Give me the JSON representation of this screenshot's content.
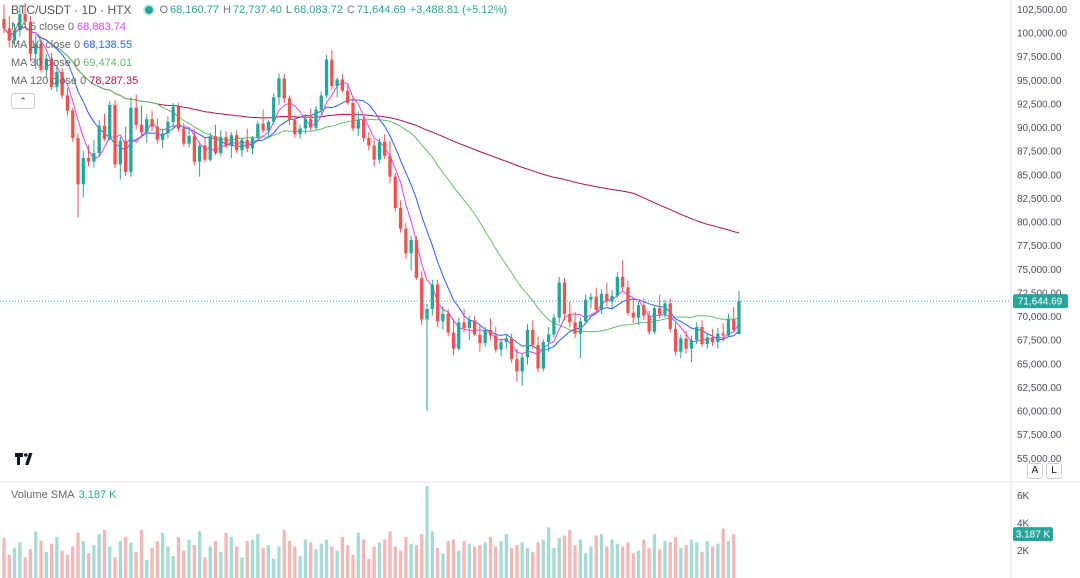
{
  "header": {
    "symbol": "BTC/USDT · 1D · HTX",
    "open_label": "O",
    "open": "68,160.77",
    "high_label": "H",
    "high": "72,737.40",
    "low_label": "L",
    "low": "68,083.72",
    "close_label": "C",
    "close": "71,644.69",
    "change": "+3,488.81 (+5.12%)"
  },
  "ma_legend": [
    {
      "name": "MA 5 close 0",
      "value": "68,883.74",
      "color": "#e040fb"
    },
    {
      "name": "MA 10 close 0",
      "value": "68,138.55",
      "color": "#2962ff"
    },
    {
      "name": "MA 30 close 0",
      "value": "69,474.01",
      "color": "#66bb6a"
    },
    {
      "name": "MA 120 close 0",
      "value": "78,287.35",
      "color": "#ad1457"
    }
  ],
  "collapse_icon": "chevron-up-icon",
  "volume": {
    "label": "Volume SMA",
    "value": "3.187 K",
    "last_tag": "3.187 K"
  },
  "price_tag": "71,644.69",
  "scale_buttons": {
    "auto": "A",
    "log": "L"
  },
  "colors": {
    "up": "#26a69a",
    "down": "#ef5350",
    "up_vol": "#a5dbd2",
    "down_vol": "#f5b7b5"
  },
  "chart_data": {
    "type": "candlestick",
    "price_axis": {
      "ylim": [
        52500,
        103500
      ],
      "ticks": [
        55000,
        57500,
        60000,
        62500,
        65000,
        67500,
        70000,
        72500,
        75000,
        77500,
        80000,
        82500,
        85000,
        87500,
        90000,
        92500,
        95000,
        97500,
        100000,
        102500
      ]
    },
    "volume_axis": {
      "ylim": [
        0,
        7000
      ],
      "ticks": [
        {
          "v": 2000,
          "label": "2K"
        },
        {
          "v": 4000,
          "label": "4K"
        },
        {
          "v": 6000,
          "label": "6K"
        }
      ]
    },
    "last_price": 71644.69,
    "candles": [
      [
        101500,
        103000,
        100000,
        100500
      ],
      [
        100500,
        101800,
        98500,
        99200
      ],
      [
        99200,
        101000,
        98700,
        100300
      ],
      [
        100300,
        102800,
        99600,
        102000
      ],
      [
        102000,
        103200,
        100800,
        101200
      ],
      [
        101200,
        101800,
        97000,
        97800
      ],
      [
        97800,
        99800,
        96200,
        98900
      ],
      [
        98900,
        99300,
        95800,
        96100
      ],
      [
        96100,
        97800,
        95200,
        97300
      ],
      [
        97300,
        97900,
        94000,
        94300
      ],
      [
        94300,
        96500,
        93800,
        95900
      ],
      [
        95900,
        96300,
        93100,
        93400
      ],
      [
        93400,
        94200,
        91200,
        91800
      ],
      [
        91800,
        92100,
        88500,
        88900
      ],
      [
        88900,
        89400,
        80500,
        84000
      ],
      [
        84000,
        87500,
        82600,
        86800
      ],
      [
        86800,
        88200,
        85900,
        86400
      ],
      [
        86400,
        88700,
        85800,
        87300
      ],
      [
        87300,
        90800,
        86900,
        90200
      ],
      [
        90200,
        91500,
        88600,
        88800
      ],
      [
        88800,
        92800,
        88600,
        92400
      ],
      [
        92400,
        92900,
        85700,
        86100
      ],
      [
        86100,
        89000,
        84500,
        88600
      ],
      [
        88600,
        90100,
        84900,
        85300
      ],
      [
        85300,
        93200,
        84800,
        92100
      ],
      [
        92100,
        93500,
        89800,
        90300
      ],
      [
        90300,
        92300,
        88900,
        89500
      ],
      [
        89500,
        91400,
        88400,
        90900
      ],
      [
        90900,
        91800,
        89600,
        90100
      ],
      [
        90100,
        91000,
        88300,
        88700
      ],
      [
        88700,
        89900,
        87800,
        89400
      ],
      [
        89400,
        91200,
        88900,
        90600
      ],
      [
        90600,
        92600,
        89800,
        92200
      ],
      [
        92200,
        92600,
        89600,
        89900
      ],
      [
        89900,
        90500,
        88000,
        88300
      ],
      [
        88300,
        89900,
        87900,
        89100
      ],
      [
        89100,
        89800,
        86000,
        86400
      ],
      [
        86400,
        88500,
        84800,
        88100
      ],
      [
        88100,
        88900,
        86300,
        86600
      ],
      [
        86600,
        89500,
        86400,
        89100
      ],
      [
        89100,
        90300,
        87100,
        87300
      ],
      [
        87300,
        89700,
        87000,
        89000
      ],
      [
        89000,
        89600,
        87800,
        88100
      ],
      [
        88100,
        89500,
        86800,
        89200
      ],
      [
        89200,
        89700,
        87300,
        87600
      ],
      [
        87600,
        88900,
        86900,
        88700
      ],
      [
        88700,
        89900,
        87400,
        87800
      ],
      [
        87800,
        89100,
        87200,
        88900
      ],
      [
        88900,
        90700,
        88600,
        90400
      ],
      [
        90400,
        91900,
        89400,
        89700
      ],
      [
        89700,
        90800,
        88900,
        90600
      ],
      [
        90600,
        93600,
        90300,
        93200
      ],
      [
        93200,
        95700,
        92400,
        95200
      ],
      [
        95200,
        95700,
        92600,
        93100
      ],
      [
        93100,
        93400,
        90300,
        90800
      ],
      [
        90800,
        91200,
        88900,
        89300
      ],
      [
        89300,
        90300,
        88800,
        89900
      ],
      [
        89900,
        91400,
        89300,
        90900
      ],
      [
        90900,
        92000,
        89700,
        90000
      ],
      [
        90000,
        92300,
        89700,
        91900
      ],
      [
        91900,
        93800,
        91300,
        93400
      ],
      [
        93400,
        97700,
        93100,
        97200
      ],
      [
        97200,
        98200,
        94000,
        94400
      ],
      [
        94400,
        95300,
        93200,
        95100
      ],
      [
        95100,
        95700,
        93700,
        93900
      ],
      [
        93900,
        94600,
        92400,
        92600
      ],
      [
        92600,
        93300,
        89600,
        89900
      ],
      [
        89900,
        91700,
        89100,
        90800
      ],
      [
        90800,
        91400,
        88500,
        88900
      ],
      [
        88900,
        89500,
        87600,
        88100
      ],
      [
        88100,
        88700,
        85900,
        86600
      ],
      [
        86600,
        88900,
        86200,
        88500
      ],
      [
        88500,
        89300,
        86700,
        87000
      ],
      [
        87000,
        88600,
        84100,
        84800
      ],
      [
        84800,
        85200,
        81100,
        81500
      ],
      [
        81500,
        82300,
        78900,
        79300
      ],
      [
        79300,
        79900,
        76100,
        76700
      ],
      [
        76700,
        78600,
        74900,
        78100
      ],
      [
        78100,
        78500,
        73900,
        74100
      ],
      [
        74100,
        74800,
        69100,
        69700
      ],
      [
        69700,
        71400,
        60000,
        70800
      ],
      [
        70800,
        73900,
        70100,
        73400
      ],
      [
        73400,
        73900,
        68900,
        69500
      ],
      [
        69500,
        71100,
        68600,
        70300
      ],
      [
        70300,
        70800,
        67900,
        68300
      ],
      [
        68300,
        69700,
        65900,
        66600
      ],
      [
        66600,
        69900,
        66400,
        69400
      ],
      [
        69400,
        70800,
        68300,
        68800
      ],
      [
        68800,
        70100,
        67500,
        69600
      ],
      [
        69600,
        70100,
        67900,
        68100
      ],
      [
        68100,
        69100,
        66300,
        67200
      ],
      [
        67200,
        68900,
        66800,
        68600
      ],
      [
        68600,
        69800,
        67500,
        68000
      ],
      [
        68000,
        68900,
        66200,
        66500
      ],
      [
        66500,
        67700,
        65800,
        67300
      ],
      [
        67300,
        68200,
        66600,
        67700
      ],
      [
        67700,
        68200,
        65100,
        65500
      ],
      [
        65500,
        66600,
        63100,
        64200
      ],
      [
        64200,
        66100,
        62700,
        65700
      ],
      [
        65700,
        69200,
        64900,
        68600
      ],
      [
        68600,
        69600,
        66600,
        67000
      ],
      [
        67000,
        67900,
        64100,
        64500
      ],
      [
        64500,
        67600,
        64200,
        67300
      ],
      [
        67300,
        68900,
        66300,
        68100
      ],
      [
        68100,
        70300,
        67800,
        69900
      ],
      [
        69900,
        74200,
        69300,
        73600
      ],
      [
        73600,
        74100,
        69600,
        70300
      ],
      [
        70300,
        71600,
        68900,
        69400
      ],
      [
        69400,
        70500,
        67700,
        68200
      ],
      [
        68200,
        69900,
        65600,
        69500
      ],
      [
        69500,
        72300,
        69200,
        71800
      ],
      [
        71800,
        72500,
        70900,
        72100
      ],
      [
        72100,
        73000,
        70300,
        70700
      ],
      [
        70700,
        72900,
        70300,
        72400
      ],
      [
        72400,
        73600,
        71100,
        71600
      ],
      [
        71600,
        72800,
        70800,
        72200
      ],
      [
        72200,
        74700,
        72000,
        74200
      ],
      [
        74200,
        76000,
        72700,
        73100
      ],
      [
        73100,
        73800,
        70100,
        70400
      ],
      [
        70400,
        71900,
        69300,
        69900
      ],
      [
        69900,
        71600,
        69100,
        71200
      ],
      [
        71200,
        71900,
        69600,
        70100
      ],
      [
        70100,
        70600,
        68100,
        68400
      ],
      [
        68400,
        71200,
        68100,
        70900
      ],
      [
        70900,
        72300,
        69800,
        70200
      ],
      [
        70200,
        71800,
        69900,
        71400
      ],
      [
        71400,
        71900,
        68300,
        68700
      ],
      [
        68700,
        69400,
        65900,
        66300
      ],
      [
        66300,
        68100,
        65600,
        67700
      ],
      [
        67700,
        68500,
        66100,
        66600
      ],
      [
        66600,
        68000,
        65200,
        67500
      ],
      [
        67500,
        69400,
        67100,
        68900
      ],
      [
        68900,
        69600,
        66800,
        67100
      ],
      [
        67100,
        68200,
        66600,
        67800
      ],
      [
        67800,
        68700,
        66900,
        67300
      ],
      [
        67300,
        68800,
        66600,
        68200
      ],
      [
        68200,
        69300,
        67400,
        68000
      ],
      [
        68000,
        70300,
        67800,
        69700
      ],
      [
        69700,
        71000,
        68300,
        68600
      ],
      [
        68160.77,
        72737.4,
        68083.72,
        71644.69
      ]
    ],
    "volumes": [
      2900,
      1700,
      2200,
      2600,
      1500,
      2100,
      3400,
      2700,
      1900,
      2500,
      3000,
      2000,
      1700,
      2300,
      3300,
      2700,
      1800,
      2400,
      3200,
      3500,
      2300,
      1500,
      2700,
      3000,
      2600,
      1900,
      3500,
      1300,
      2200,
      2700,
      3300,
      2300,
      1600,
      3000,
      2000,
      2800,
      2400,
      3400,
      1500,
      2300,
      2700,
      1900,
      3300,
      3000,
      2300,
      1500,
      2700,
      2800,
      3200,
      2200,
      2400,
      1400,
      2300,
      3500,
      2700,
      2300,
      1600,
      2800,
      2600,
      2100,
      2500,
      2800,
      2300,
      2000,
      3000,
      2400,
      1700,
      3300,
      2800,
      1400,
      2300,
      2600,
      2800,
      3400,
      2300,
      2000,
      3000,
      2500,
      2400,
      3200,
      6700,
      3400,
      2200,
      1800,
      2700,
      2800,
      2000,
      2700,
      2500,
      2300,
      2400,
      2600,
      3000,
      2300,
      2700,
      3200,
      2200,
      2400,
      2600,
      2200,
      1900,
      2600,
      2800,
      3700,
      2200,
      2900,
      3100,
      3500,
      2400,
      2800,
      1800,
      2300,
      3100,
      3200,
      2300,
      2800,
      2500,
      2300,
      2600,
      1800,
      2000,
      2800,
      2200,
      3200,
      2100,
      2700,
      2600,
      3000,
      2200,
      2400,
      2800,
      2600,
      1900,
      2700,
      2300,
      2500,
      3600,
      2700,
      3200
    ]
  }
}
